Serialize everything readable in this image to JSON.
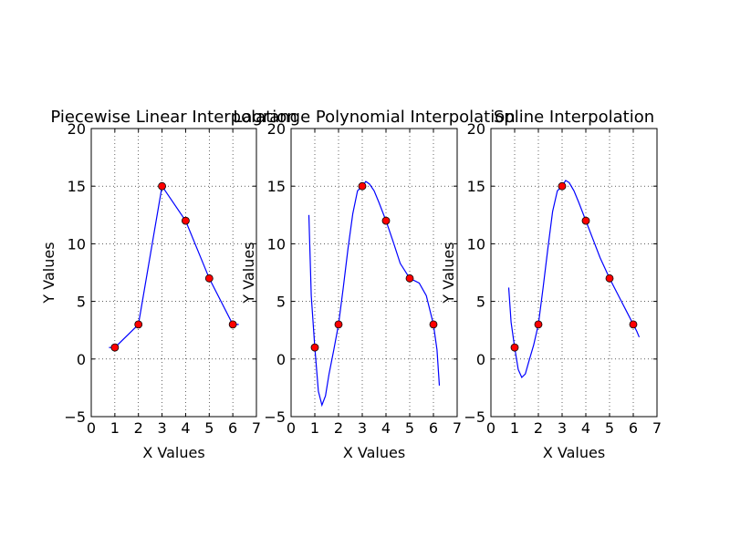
{
  "chart_data": [
    {
      "type": "line",
      "title": "Piecewise Linear Interpolation",
      "xlabel": "X Values",
      "ylabel": "Y Values",
      "xlim": [
        0,
        7
      ],
      "ylim": [
        -5,
        20
      ],
      "xticks": [
        0,
        1,
        2,
        3,
        4,
        5,
        6,
        7
      ],
      "yticks": [
        -5,
        0,
        5,
        10,
        15,
        20
      ],
      "grid": true,
      "points": {
        "x": [
          1,
          2,
          3,
          4,
          5,
          6
        ],
        "y": [
          1,
          3,
          15,
          12,
          7,
          3
        ]
      },
      "curve": {
        "x": [
          0.75,
          1,
          2,
          3,
          4,
          5,
          6,
          6.25
        ],
        "y": [
          1,
          1,
          3,
          15,
          12,
          7,
          3,
          3
        ]
      },
      "colors": {
        "curve": "#0000ff",
        "points": "#ff0000"
      }
    },
    {
      "type": "line",
      "title": "Lagrange Polynomial Interpolation",
      "xlabel": "X Values",
      "ylabel": "Y Values",
      "xlim": [
        0,
        7
      ],
      "ylim": [
        -5,
        20
      ],
      "xticks": [
        0,
        1,
        2,
        3,
        4,
        5,
        6,
        7
      ],
      "yticks": [
        -5,
        0,
        5,
        10,
        15,
        20
      ],
      "grid": true,
      "points": {
        "x": [
          1,
          2,
          3,
          4,
          5,
          6
        ],
        "y": [
          1,
          3,
          15,
          12,
          7,
          3
        ]
      },
      "curve": {
        "x": [
          0.75,
          0.85,
          1,
          1.15,
          1.3,
          1.45,
          1.6,
          1.8,
          2,
          2.2,
          2.4,
          2.6,
          2.8,
          3,
          3.15,
          3.3,
          3.5,
          3.7,
          4,
          4.3,
          4.6,
          5,
          5.4,
          5.7,
          6,
          6.15,
          6.25
        ],
        "y": [
          12.5,
          5.5,
          1,
          -2.8,
          -4.0,
          -3.2,
          -1.3,
          0.8,
          3,
          6.2,
          9.6,
          12.6,
          14.6,
          15,
          15.4,
          15.2,
          14.6,
          13.6,
          12,
          10.2,
          8.3,
          7,
          6.6,
          5.5,
          3,
          0.8,
          -2.3
        ]
      },
      "colors": {
        "curve": "#0000ff",
        "points": "#ff0000"
      }
    },
    {
      "type": "line",
      "title": "Spline Interpolation",
      "xlabel": "X Values",
      "ylabel": "Y Values",
      "xlim": [
        0,
        7
      ],
      "ylim": [
        -5,
        20
      ],
      "xticks": [
        0,
        1,
        2,
        3,
        4,
        5,
        6,
        7
      ],
      "yticks": [
        -5,
        0,
        5,
        10,
        15,
        20
      ],
      "grid": true,
      "points": {
        "x": [
          1,
          2,
          3,
          4,
          5,
          6
        ],
        "y": [
          1,
          3,
          15,
          12,
          7,
          3
        ]
      },
      "curve": {
        "x": [
          0.75,
          0.85,
          1,
          1.15,
          1.3,
          1.45,
          1.6,
          1.8,
          2,
          2.2,
          2.4,
          2.6,
          2.8,
          3,
          3.15,
          3.3,
          3.5,
          3.7,
          4,
          4.3,
          4.6,
          5,
          5.4,
          5.7,
          6,
          6.15,
          6.25
        ],
        "y": [
          6.2,
          3.2,
          1,
          -0.9,
          -1.6,
          -1.3,
          -0.2,
          1.2,
          3,
          6.2,
          9.6,
          12.8,
          14.6,
          15,
          15.5,
          15.3,
          14.6,
          13.6,
          12,
          10.4,
          8.8,
          7,
          5.4,
          4.2,
          3,
          2.4,
          1.9
        ]
      },
      "colors": {
        "curve": "#0000ff",
        "points": "#ff0000"
      }
    }
  ]
}
